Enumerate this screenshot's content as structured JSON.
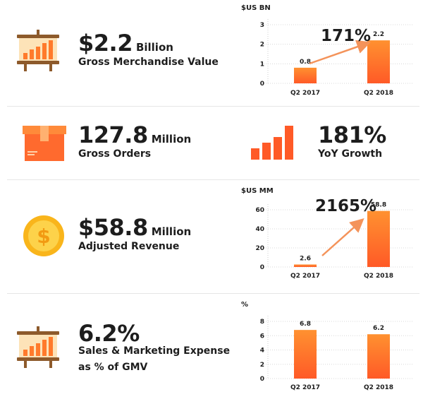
{
  "colors": {
    "bar_top": "#ff9130",
    "bar_bottom": "#ff5a27",
    "arrow": "#f4935a",
    "divider": "#e6e6e6"
  },
  "rows": [
    {
      "icon": "presentation-chart-icon",
      "value": "$2.2",
      "unit": "Billion",
      "label": "Gross Merchandise Value"
    },
    {
      "icon": "package-box-icon",
      "value": "127.8",
      "unit": "Million",
      "label": "Gross Orders",
      "growth_value": "181%",
      "growth_label": "YoY Growth"
    },
    {
      "icon": "dollar-coin-icon",
      "value": "$58.8",
      "unit": "Million",
      "label": "Adjusted Revenue"
    },
    {
      "icon": "presentation-chart-icon",
      "value": "6.2%",
      "unit": "",
      "label_lines": [
        "Sales & Marketing Expense",
        "as % of GMV"
      ]
    }
  ],
  "growth_icon": {
    "name": "bar-growth-icon",
    "values": [
      1,
      1.5,
      2,
      3
    ]
  },
  "chart_data": [
    {
      "type": "bar",
      "title": "$US BN",
      "categories": [
        "Q2 2017",
        "Q2 2018"
      ],
      "values": [
        0.8,
        2.2
      ],
      "value_labels": [
        "0.8",
        "2.2"
      ],
      "yticks": [
        0,
        1,
        2,
        3
      ],
      "ylim": [
        0,
        3
      ],
      "annotation": "171%"
    },
    {
      "type": "bar",
      "title": "$US MM",
      "categories": [
        "Q2 2017",
        "Q2 2018"
      ],
      "values": [
        2.6,
        58.8
      ],
      "value_labels": [
        "2.6",
        "58.8"
      ],
      "yticks": [
        0,
        20,
        40,
        60
      ],
      "ylim": [
        0,
        60
      ],
      "annotation": "2165%"
    },
    {
      "type": "bar",
      "title": "%",
      "categories": [
        "Q2 2017",
        "Q2 2018"
      ],
      "values": [
        6.8,
        6.2
      ],
      "value_labels": [
        "6.8",
        "6.2"
      ],
      "yticks": [
        0,
        2,
        4,
        6,
        8
      ],
      "ylim": [
        0,
        8
      ],
      "annotation": ""
    }
  ]
}
